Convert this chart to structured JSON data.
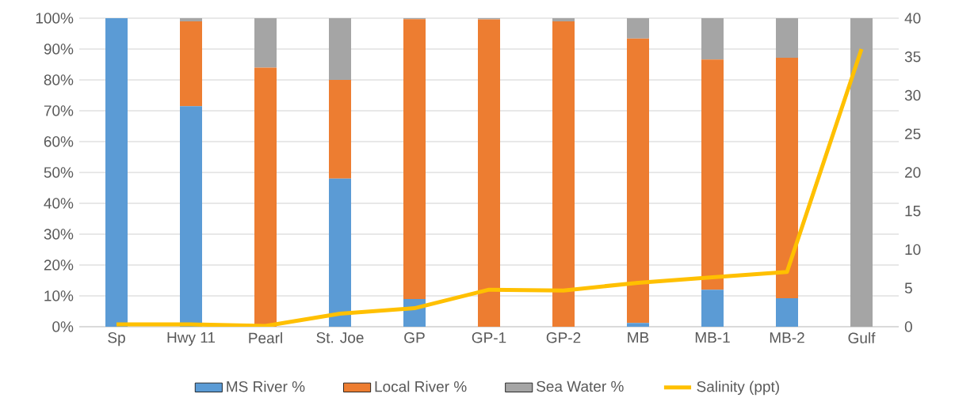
{
  "chart_data": {
    "type": "bar",
    "stacked": true,
    "grid": "y",
    "legend": "bottom",
    "categories": [
      "Sp",
      "Hwy 11",
      "Pearl",
      "St. Joe",
      "GP",
      "GP-1",
      "GP-2",
      "MB",
      "MB-1",
      "MB-2",
      "Gulf"
    ],
    "series": [
      {
        "name": "MS River %",
        "color": "#5b9bd5",
        "values": [
          100,
          71.5,
          0,
          48,
          9,
          0,
          0,
          1.2,
          12,
          9.2,
          0
        ]
      },
      {
        "name": "Local River %",
        "color": "#ed7d31",
        "values": [
          0,
          27.5,
          84,
          32,
          90.7,
          99.6,
          99,
          92.2,
          74.6,
          78,
          0
        ]
      },
      {
        "name": "Sea Water %",
        "color": "#a5a5a5",
        "values": [
          0,
          1,
          16,
          20,
          0.3,
          0.4,
          1,
          6.6,
          13.4,
          12.8,
          100
        ]
      },
      {
        "name": "Salinity (ppt)",
        "type": "line",
        "axis": "y2",
        "color": "#ffc000",
        "values": [
          0.3,
          0.3,
          0.1,
          1.7,
          2.4,
          4.8,
          4.7,
          5.7,
          6.4,
          7.1,
          36
        ]
      }
    ],
    "ylim": [
      0,
      100
    ],
    "yticks": [
      {
        "value": 0,
        "label": "0%"
      },
      {
        "value": 10,
        "label": "10%"
      },
      {
        "value": 20,
        "label": "20%"
      },
      {
        "value": 30,
        "label": "30%"
      },
      {
        "value": 40,
        "label": "40%"
      },
      {
        "value": 50,
        "label": "50%"
      },
      {
        "value": 60,
        "label": "60%"
      },
      {
        "value": 70,
        "label": "70%"
      },
      {
        "value": 80,
        "label": "80%"
      },
      {
        "value": 90,
        "label": "90%"
      },
      {
        "value": 100,
        "label": "100%"
      }
    ],
    "y2lim": [
      0,
      40
    ],
    "y2ticks": [
      0,
      5,
      10,
      15,
      20,
      25,
      30,
      35,
      40
    ]
  }
}
